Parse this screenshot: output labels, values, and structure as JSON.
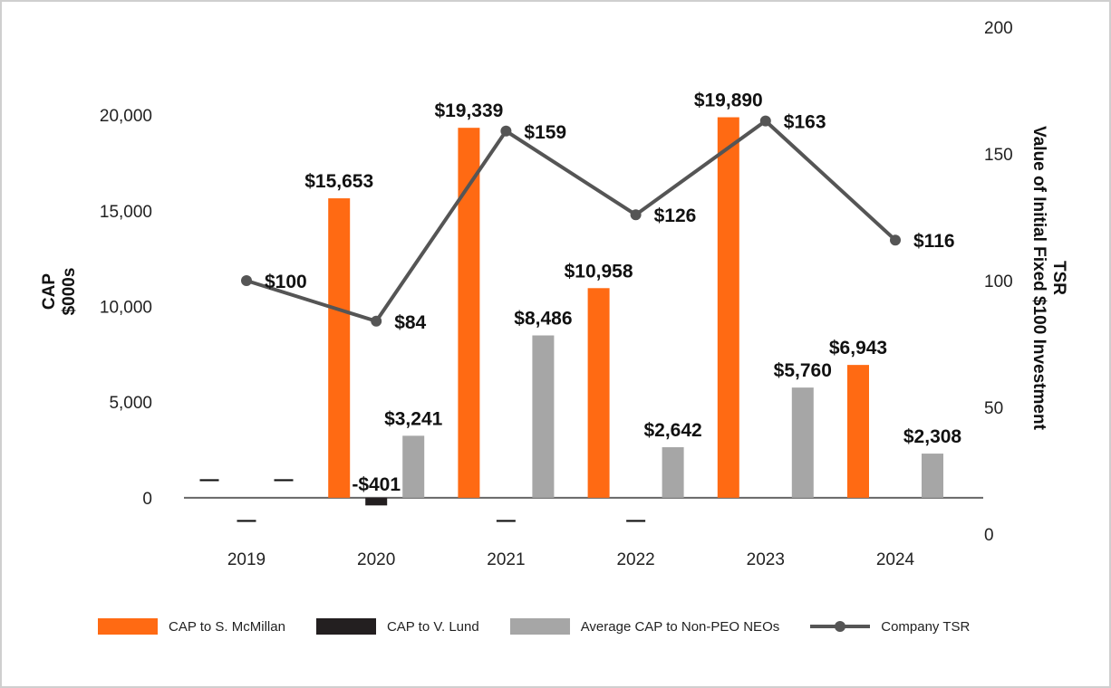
{
  "chart_data": {
    "type": "bar",
    "categories": [
      "2019",
      "2020",
      "2021",
      "2022",
      "2023",
      "2024"
    ],
    "series": [
      {
        "name": "CAP to S. McMillan",
        "axis": "left",
        "color": "#ff6a13",
        "values": [
          0,
          15653,
          19339,
          10958,
          19890,
          6943
        ],
        "labels": [
          "—",
          "$15,653",
          "$19,339",
          "$10,958",
          "$19,890",
          "$6,943"
        ]
      },
      {
        "name": "CAP to V. Lund",
        "axis": "left",
        "color": "#231f20",
        "values": [
          0,
          -401,
          0,
          0,
          0,
          0
        ],
        "labels": [
          "—",
          "-$401",
          "—",
          "—",
          "",
          ""
        ]
      },
      {
        "name": "Average CAP to Non-PEO NEOs",
        "axis": "left",
        "color": "#a6a6a6",
        "values": [
          0,
          3241,
          8486,
          2642,
          5760,
          2308
        ],
        "labels": [
          "—",
          "$3,241",
          "$8,486",
          "$2,642",
          "$5,760",
          "$2,308"
        ]
      },
      {
        "name": "Company TSR",
        "axis": "right",
        "type": "line",
        "color": "#555555",
        "values": [
          100,
          84,
          159,
          126,
          163,
          116
        ],
        "labels": [
          "$100",
          "$84",
          "$159",
          "$126",
          "$163",
          "$116"
        ]
      }
    ],
    "ylabel": [
      "CAP",
      "$000s"
    ],
    "ylim": [
      -1900,
      24600
    ],
    "yticks": [
      "0",
      "5,000",
      "10,000",
      "15,000",
      "20,000"
    ],
    "y2label": [
      "TSR",
      "Value of Initial Fixed $100 Investment"
    ],
    "y2lim": [
      0,
      200
    ],
    "y2ticks": [
      "0",
      "50",
      "100",
      "150",
      "200"
    ],
    "legend_position": "bottom"
  }
}
